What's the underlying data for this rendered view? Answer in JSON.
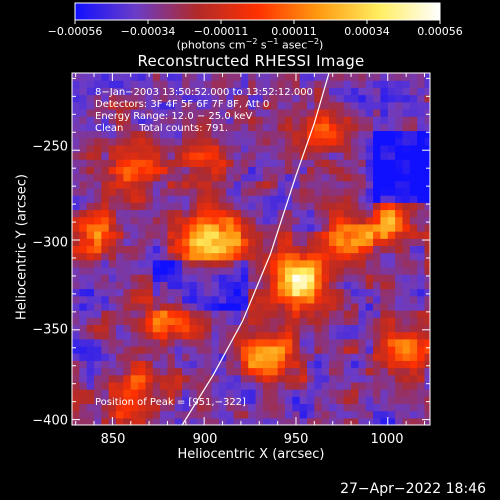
{
  "chart_data": {
    "type": "heatmap",
    "title": "Reconstructed RHESSI Image",
    "xlabel": "Heliocentric X (arcsec)",
    "ylabel": "Heliocentric Y (arcsec)",
    "xlim": [
      828,
      1023
    ],
    "ylim": [
      -403,
      -207
    ],
    "x_ticks": [
      850,
      900,
      950,
      1000
    ],
    "y_ticks": [
      -250,
      -300,
      -350,
      -400
    ],
    "x_tick_labels": [
      "850",
      "900",
      "950",
      "1000"
    ],
    "y_tick_labels": [
      "−250",
      "−300",
      "−350",
      "−400"
    ],
    "colorbar": {
      "range": [
        -0.00056,
        0.00056
      ],
      "tick_labels": [
        "−0.00056",
        "−0.00034",
        "−0.00011",
        "0.00011",
        "0.00034",
        "0.00056"
      ],
      "unit_text": "(photons cm",
      "unit_parts": [
        "(photons cm",
        "−2",
        " s",
        "−1",
        " asec",
        "−2",
        ")"
      ],
      "colormap": [
        "#1010ff",
        "#6a3cc8",
        "#b02a2a",
        "#ff3000",
        "#ff9a10",
        "#ffee60",
        "#ffffff"
      ]
    },
    "annotations": {
      "time_range": "8−Jan−2003 13:50:52.000 to 13:52:12.000",
      "detectors": "Detectors: 3F 4F 5F 6F 7F 8F, Att 0",
      "energy_range": "Energy Range: 12.0 − 25.0 keV",
      "method_counts": "Clean     Total counts: 791.",
      "peak_position": "Position of Peak = [951,−322]"
    },
    "limb_curve": [
      [
        888,
        -403
      ],
      [
        905,
        -375
      ],
      [
        921,
        -345
      ],
      [
        936,
        -308
      ],
      [
        950,
        -264
      ],
      [
        960,
        -235
      ],
      [
        968,
        -207
      ]
    ],
    "grid": false
  },
  "footer": {
    "timestamp": "27−Apr−2022 18:46"
  }
}
